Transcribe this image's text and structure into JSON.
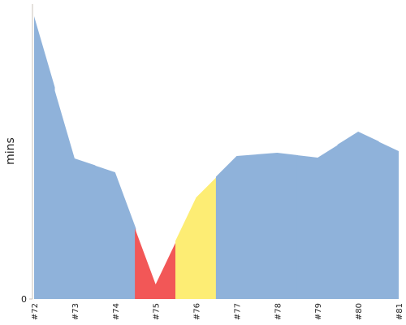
{
  "chart_data": {
    "type": "area",
    "y_label": "mins",
    "categories": [
      "#72",
      "#73",
      "#74",
      "#75",
      "#76",
      "#77",
      "#78",
      "#79",
      "#80",
      "#81"
    ],
    "values": [
      348,
      173,
      156,
      18,
      125,
      176,
      180,
      174,
      206,
      182
    ],
    "colors": [
      "#8fb2da",
      "#8fb2da",
      "#8fb2da",
      "#f25757",
      "#fded74",
      "#8fb2da",
      "#8fb2da",
      "#8fb2da",
      "#8fb2da",
      "#8fb2da"
    ],
    "ylim": [
      0,
      363
    ],
    "yticks": [
      0
    ]
  }
}
